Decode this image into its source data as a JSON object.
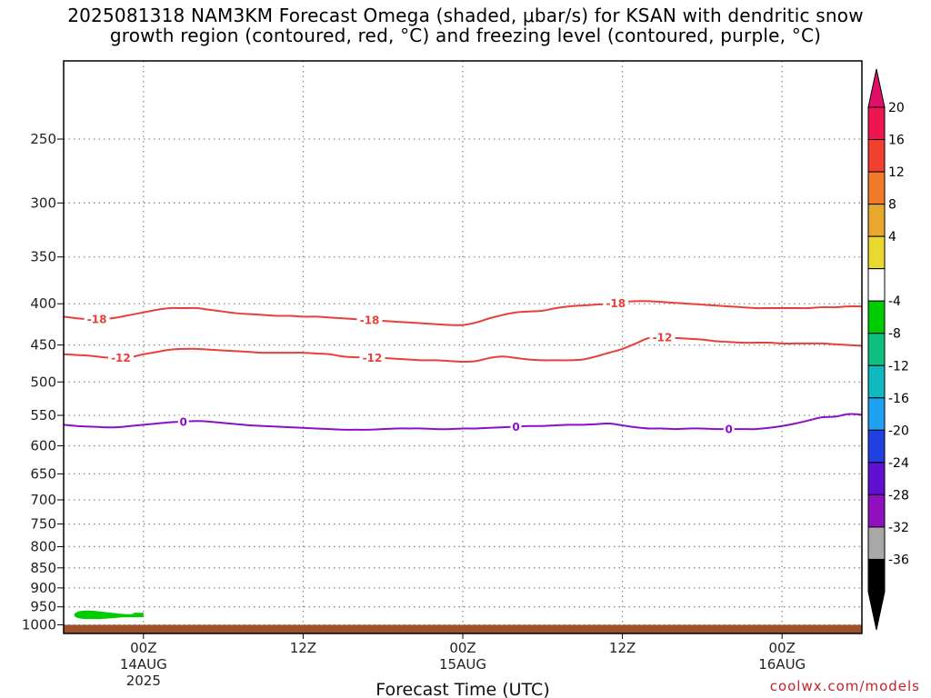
{
  "title": {
    "line1": "2025081318 NAM3KM Forecast Omega (shaded, μbar/s) for KSAN with dendritic snow",
    "line2": "growth region (contoured, red, °C) and freezing level (contoured, purple, °C)"
  },
  "credit": "coolwx.com/models",
  "colors": {
    "temp_contour": "#e8403a",
    "freezing_contour": "#8a10c8",
    "ground": "#a0522d",
    "omega_shade": "#00cc00"
  },
  "chart_data": {
    "type": "line",
    "title": "2025081318 NAM3KM Forecast Omega (shaded, μbar/s) for KSAN with dendritic snow growth region (contoured, red, °C) and freezing level (contoured, purple, °C)",
    "xlabel": "Forecast Time (UTC)",
    "ylabel": "",
    "x_unit": "hours after 2025-08-13 18Z",
    "xlim": [
      0,
      60
    ],
    "y_scale": "log-pressure (hPa), inverted",
    "ylim": [
      1025,
      200
    ],
    "grid": true,
    "y_ticks": [
      250,
      300,
      350,
      400,
      450,
      500,
      550,
      600,
      650,
      700,
      750,
      800,
      850,
      900,
      950,
      1000
    ],
    "x_ticks": [
      {
        "x": 6,
        "lines": [
          "00Z",
          "14AUG",
          "2025"
        ]
      },
      {
        "x": 18,
        "lines": [
          "12Z"
        ]
      },
      {
        "x": 30,
        "lines": [
          "00Z",
          "15AUG"
        ]
      },
      {
        "x": 42,
        "lines": [
          "12Z"
        ]
      },
      {
        "x": 54,
        "lines": [
          "00Z",
          "16AUG"
        ]
      }
    ],
    "series": [
      {
        "name": "-18",
        "color": "#e8403a",
        "x": [
          0,
          1,
          2,
          3,
          4,
          5,
          6,
          7,
          8,
          9,
          10,
          11,
          12,
          13,
          14,
          15,
          16,
          17,
          18,
          19,
          20,
          21,
          22,
          23,
          24,
          25,
          26,
          27,
          28,
          29,
          30,
          31,
          32,
          33,
          34,
          35,
          36,
          37,
          38,
          39,
          40,
          41,
          42,
          43,
          44,
          45,
          46,
          47,
          48,
          49,
          50,
          51,
          52,
          53,
          54,
          55,
          56,
          57,
          58,
          59,
          60
        ],
        "values": [
          415,
          417,
          418,
          418,
          416,
          413,
          410,
          407,
          405,
          405,
          405,
          407,
          409,
          411,
          412,
          413,
          414,
          414,
          415,
          415,
          416,
          417,
          418,
          419,
          420,
          421,
          422,
          423,
          424,
          425,
          425,
          422,
          417,
          413,
          410,
          409,
          408,
          405,
          403,
          402,
          401,
          400,
          398,
          397,
          397,
          398,
          399,
          400,
          401,
          402,
          403,
          404,
          405,
          405,
          405,
          405,
          405,
          404,
          404,
          403,
          403
        ],
        "labels": [
          {
            "x": 2.5,
            "text": "-18"
          },
          {
            "x": 23,
            "text": "-18"
          },
          {
            "x": 41.5,
            "text": "-18"
          }
        ]
      },
      {
        "name": "-12",
        "color": "#e8403a",
        "x": [
          0,
          1,
          2,
          3,
          4,
          5,
          6,
          7,
          8,
          9,
          10,
          11,
          12,
          13,
          14,
          15,
          16,
          17,
          18,
          19,
          20,
          21,
          22,
          23,
          24,
          25,
          26,
          27,
          28,
          29,
          30,
          31,
          32,
          33,
          34,
          35,
          36,
          37,
          38,
          39,
          40,
          41,
          42,
          43,
          44,
          45,
          46,
          47,
          48,
          49,
          50,
          51,
          52,
          53,
          54,
          55,
          56,
          57,
          58,
          59,
          60
        ],
        "values": [
          462,
          463,
          464,
          466,
          467,
          466,
          462,
          459,
          456,
          455,
          455,
          456,
          457,
          458,
          459,
          460,
          460,
          460,
          460,
          461,
          462,
          465,
          466,
          466,
          467,
          468,
          469,
          470,
          470,
          471,
          472,
          471,
          467,
          465,
          467,
          469,
          470,
          470,
          470,
          469,
          465,
          460,
          455,
          448,
          441,
          440,
          441,
          442,
          443,
          445,
          446,
          447,
          447,
          447,
          448,
          448,
          448,
          448,
          449,
          450,
          451
        ],
        "labels": [
          {
            "x": 4.3,
            "text": "-12"
          },
          {
            "x": 23.2,
            "text": "-12"
          },
          {
            "x": 45,
            "text": "-12"
          }
        ]
      },
      {
        "name": "0",
        "color": "#8a10c8",
        "x": [
          0,
          1,
          2,
          3,
          4,
          5,
          6,
          7,
          8,
          9,
          10,
          11,
          12,
          13,
          14,
          15,
          16,
          17,
          18,
          19,
          20,
          21,
          22,
          23,
          24,
          25,
          26,
          27,
          28,
          29,
          30,
          31,
          32,
          33,
          34,
          35,
          36,
          37,
          38,
          39,
          40,
          41,
          42,
          43,
          44,
          45,
          46,
          47,
          48,
          49,
          50,
          51,
          52,
          53,
          54,
          55,
          56,
          57,
          58,
          59,
          60
        ],
        "values": [
          565,
          567,
          568,
          569,
          569,
          567,
          565,
          563,
          561,
          560,
          559,
          560,
          562,
          564,
          566,
          567,
          568,
          569,
          570,
          571,
          572,
          573,
          573,
          573,
          572,
          571,
          571,
          571,
          572,
          572,
          571,
          571,
          570,
          569,
          568,
          567,
          567,
          566,
          565,
          565,
          564,
          563,
          566,
          569,
          571,
          571,
          572,
          571,
          571,
          572,
          572,
          572,
          572,
          570,
          567,
          563,
          558,
          553,
          552,
          548,
          549
        ],
        "labels": [
          {
            "x": 9,
            "text": "0"
          },
          {
            "x": 34,
            "text": "0"
          },
          {
            "x": 50,
            "text": "0"
          }
        ]
      }
    ],
    "omega_regions": [
      {
        "class": "-8 to -4",
        "color": "#00cc00",
        "time_span": [
          0.8,
          6
        ],
        "pressure_span": [
          960,
          985
        ]
      }
    ],
    "ground_pressure": 1000,
    "colorbar": {
      "label_values": [
        20,
        16,
        12,
        8,
        4,
        -4,
        -8,
        -12,
        -16,
        -20,
        -24,
        -28,
        -32,
        -36
      ],
      "colors": [
        "#ee1650",
        "#f04030",
        "#f07a28",
        "#e8a830",
        "#e8d830",
        "#ffffff",
        "#00cc00",
        "#10c080",
        "#10b8c0",
        "#20a0f0",
        "#2040e0",
        "#6010d0",
        "#9010c0",
        "#a8a8a8",
        "#000000"
      ],
      "top_arrow_color": "#e0106a",
      "bottom_arrow_color": "#000000"
    }
  }
}
